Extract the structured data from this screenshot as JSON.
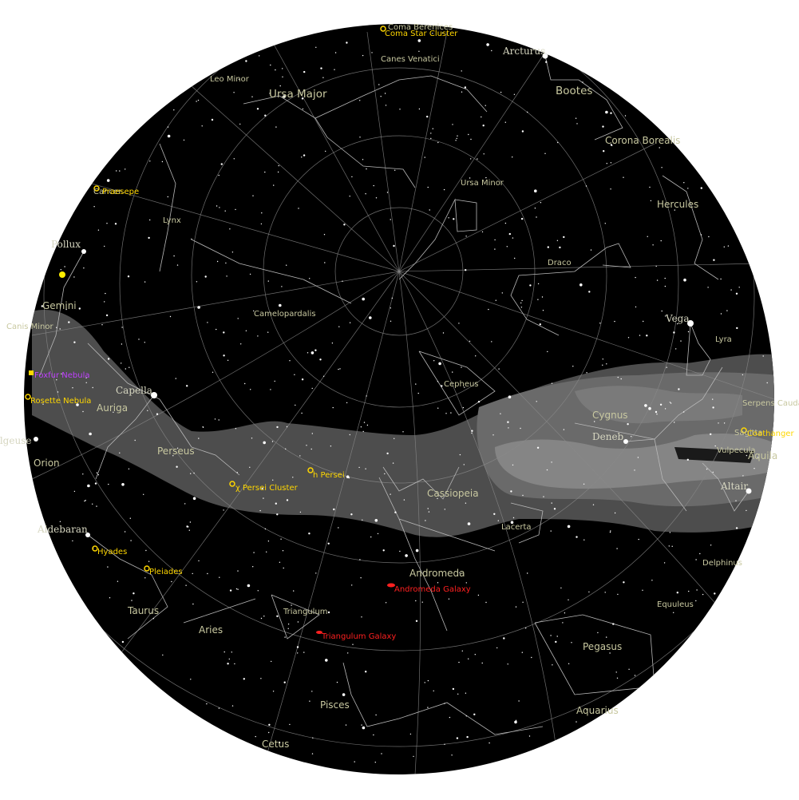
{
  "map": {
    "background": "#000000",
    "milky_way_color": "#5a5a5a",
    "grid_color": "#8a8a8a",
    "constellation_line_color": "#b8b8b8",
    "constellation_label_color": "#c8c8a0",
    "star_color": "#ffffff"
  },
  "constellations": {
    "ursa_major": "Ursa Major",
    "canes_venatici": "Canes Venatici",
    "leo_minor": "Leo Minor",
    "bootes": "Bootes",
    "corona_borealis": "Corona Borealis",
    "hercules": "Hercules",
    "ursa_minor": "Ursa Minor",
    "draco": "Draco",
    "lynx": "Lynx",
    "camelopardalis": "Camelopardalis",
    "gemini": "Gemini",
    "canis_minor": "Canis Minor",
    "lyra": "Lyra",
    "cepheus": "Cepheus",
    "cygnus": "Cygnus",
    "auriga": "Auriga",
    "perseus": "Perseus",
    "cassiopeia": "Cassiopeia",
    "orion": "Orion",
    "lacerta": "Lacerta",
    "vulpecula": "Vulpecula",
    "aquila": "Aquila",
    "sagitta": "Sagitta",
    "serpens_cauda": "Serpens Cauda",
    "andromeda": "Andromeda",
    "triangulum": "Triangulum",
    "aries": "Aries",
    "taurus": "Taurus",
    "delphinus": "Delphinus",
    "equuleus": "Equuleus",
    "pegasus": "Pegasus",
    "pisces": "Pisces",
    "aquarius": "Aquarius",
    "cetus": "Cetus",
    "cancer": "Cancer"
  },
  "stars": {
    "arcturus": "Arcturus",
    "pollux": "Pollux",
    "vega": "Vega",
    "capella": "Capella",
    "deneb": "Deneb",
    "altair": "Altair",
    "betelgeuse": "Betelgeuse",
    "aldebaran": "Aldebaran"
  },
  "objects": {
    "coma_berenices": "Coma Berenices",
    "coma_star_cluster": "Coma Star Cluster",
    "praesepe": "Praesepe",
    "foxfur_nebula": "Foxfur Nebula",
    "rosette_nebula": "Rosette Nebula",
    "h_persei": "h Persei",
    "chi_persei_cluster": "χ Persei Cluster",
    "hyades": "Hyades",
    "pleiades": "Pleiades",
    "andromeda_galaxy": "Andromeda Galaxy",
    "triangulum_galaxy": "Triangulum Galaxy",
    "coathanger": "Coathanger"
  }
}
